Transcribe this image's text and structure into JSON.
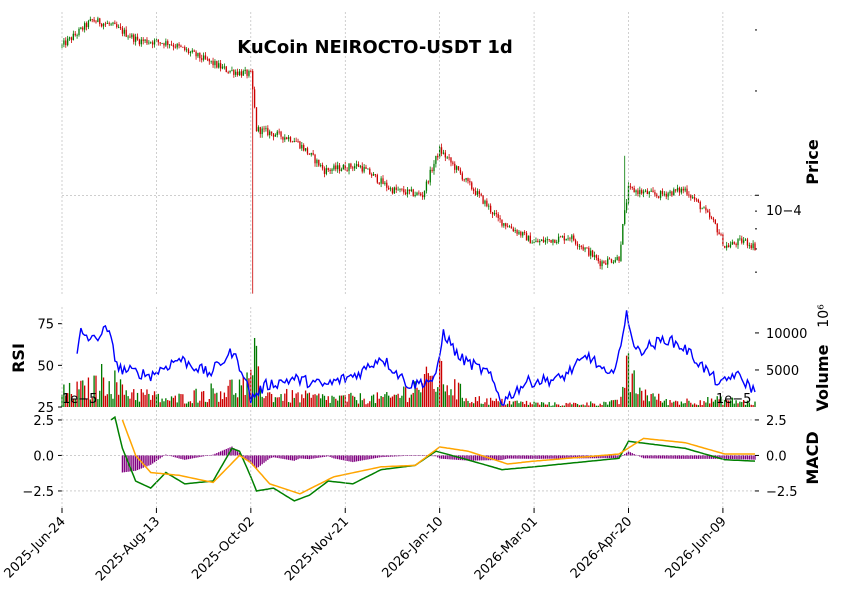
{
  "chart_data": {
    "type": "candlestick",
    "title": "KuCoin NEIROCTO-USDT 1d",
    "x_tick_labels": [
      "2025-Jun-24",
      "2025-Aug-13",
      "2025-Oct-02",
      "2025-Nov-21",
      "2026-Jan-10",
      "2026-Mar-01",
      "2026-Apr-20",
      "2026-Jun-09"
    ],
    "colors": {
      "up": "#007a00",
      "down": "#cc0000",
      "rsi": "#0000ff",
      "macd": "#008000",
      "signal": "#ffa500",
      "hist": "#800080",
      "grid": "#b0b0b0"
    },
    "price_panel": {
      "ylabel": "Price",
      "scale": "log",
      "tick_label": "10−4",
      "tick_value": 0.0001,
      "ylim": [
        5.12e-05,
        0.000338
      ],
      "close_keypoints": [
        {
          "date": "2025-06-24",
          "close": 0.00027
        },
        {
          "date": "2025-07-01",
          "close": 0.00029
        },
        {
          "date": "2025-07-10",
          "close": 0.00032
        },
        {
          "date": "2025-07-20",
          "close": 0.00031
        },
        {
          "date": "2025-08-03",
          "close": 0.00028
        },
        {
          "date": "2025-08-20",
          "close": 0.000275
        },
        {
          "date": "2025-09-05",
          "close": 0.00025
        },
        {
          "date": "2025-09-19",
          "close": 0.00023
        },
        {
          "date": "2025-10-02",
          "close": 0.000223
        },
        {
          "date": "2025-10-05",
          "close": 0.000155
        },
        {
          "date": "2025-10-25",
          "close": 0.000145
        },
        {
          "date": "2025-11-10",
          "close": 0.000118
        },
        {
          "date": "2025-11-28",
          "close": 0.000122
        },
        {
          "date": "2025-12-15",
          "close": 0.000104
        },
        {
          "date": "2026-01-01",
          "close": 0.0001
        },
        {
          "date": "2026-01-10",
          "close": 0.000135
        },
        {
          "date": "2026-01-25",
          "close": 0.000108
        },
        {
          "date": "2026-02-10",
          "close": 8.5e-05
        },
        {
          "date": "2026-03-01",
          "close": 7.3e-05
        },
        {
          "date": "2026-03-20",
          "close": 7.6e-05
        },
        {
          "date": "2026-04-05",
          "close": 6.4e-05
        },
        {
          "date": "2026-04-15",
          "close": 6.6e-05
        },
        {
          "date": "2026-04-20",
          "close": 0.000104
        },
        {
          "date": "2026-05-05",
          "close": 0.0001
        },
        {
          "date": "2026-05-20",
          "close": 0.000104
        },
        {
          "date": "2026-06-05",
          "close": 8.2e-05
        },
        {
          "date": "2026-06-10",
          "close": 7.1e-05
        },
        {
          "date": "2026-06-20",
          "close": 7.4e-05
        },
        {
          "date": "2026-06-26",
          "close": 7.1e-05
        }
      ],
      "spike_low": {
        "date": "2025-10-03",
        "low": 5.2e-05
      },
      "spike_high": {
        "date": "2026-04-18",
        "high": 0.00013
      }
    },
    "rsi_panel": {
      "ylabel": "RSI",
      "ylim": [
        25,
        85
      ],
      "yticks": [
        25,
        50,
        75
      ],
      "keypoints": [
        {
          "date": "2025-07-02",
          "rsi": 56
        },
        {
          "date": "2025-07-04",
          "rsi": 70
        },
        {
          "date": "2025-07-10",
          "rsi": 65
        },
        {
          "date": "2025-07-18",
          "rsi": 72
        },
        {
          "date": "2025-07-24",
          "rsi": 48
        },
        {
          "date": "2025-08-10",
          "rsi": 44
        },
        {
          "date": "2025-08-25",
          "rsi": 54
        },
        {
          "date": "2025-09-10",
          "rsi": 45
        },
        {
          "date": "2025-09-22",
          "rsi": 58
        },
        {
          "date": "2025-09-28",
          "rsi": 46
        },
        {
          "date": "2025-10-02",
          "rsi": 30
        },
        {
          "date": "2025-10-10",
          "rsi": 38
        },
        {
          "date": "2025-10-25",
          "rsi": 42
        },
        {
          "date": "2025-11-10",
          "rsi": 38
        },
        {
          "date": "2025-11-28",
          "rsi": 45
        },
        {
          "date": "2025-12-10",
          "rsi": 55
        },
        {
          "date": "2025-12-25",
          "rsi": 38
        },
        {
          "date": "2026-01-08",
          "rsi": 42
        },
        {
          "date": "2026-01-12",
          "rsi": 70
        },
        {
          "date": "2026-01-20",
          "rsi": 55
        },
        {
          "date": "2026-02-05",
          "rsi": 45
        },
        {
          "date": "2026-02-12",
          "rsi": 28
        },
        {
          "date": "2026-02-25",
          "rsi": 40
        },
        {
          "date": "2026-03-15",
          "rsi": 42
        },
        {
          "date": "2026-03-30",
          "rsi": 56
        },
        {
          "date": "2026-04-10",
          "rsi": 42
        },
        {
          "date": "2026-04-17",
          "rsi": 65
        },
        {
          "date": "2026-04-19",
          "rsi": 82
        },
        {
          "date": "2026-04-24",
          "rsi": 58
        },
        {
          "date": "2026-05-10",
          "rsi": 66
        },
        {
          "date": "2026-05-20",
          "rsi": 60
        },
        {
          "date": "2026-06-08",
          "rsi": 38
        },
        {
          "date": "2026-06-15",
          "rsi": 45
        },
        {
          "date": "2026-06-26",
          "rsi": 35
        }
      ]
    },
    "volume_panel": {
      "ylabel": "Volume",
      "scale_label": "10⁶",
      "yticks": [
        5000,
        10000
      ],
      "ymax": 13500,
      "keypoints": [
        {
          "date": "2025-06-24",
          "volume": 1800
        },
        {
          "date": "2025-07-10",
          "volume": 2500
        },
        {
          "date": "2025-07-18",
          "volume": 4200
        },
        {
          "date": "2025-07-25",
          "volume": 2300
        },
        {
          "date": "2025-08-20",
          "volume": 900
        },
        {
          "date": "2025-10-02",
          "volume": 3000
        },
        {
          "date": "2025-10-03",
          "volume": 6300
        },
        {
          "date": "2025-10-10",
          "volume": 1600
        },
        {
          "date": "2025-11-15",
          "volume": 1100
        },
        {
          "date": "2025-12-15",
          "volume": 1200
        },
        {
          "date": "2026-01-10",
          "volume": 4000
        },
        {
          "date": "2026-01-25",
          "volume": 1100
        },
        {
          "date": "2026-02-10",
          "volume": 700
        },
        {
          "date": "2026-03-15",
          "volume": 350
        },
        {
          "date": "2026-04-15",
          "volume": 600
        },
        {
          "date": "2026-04-19",
          "volume": 4800
        },
        {
          "date": "2026-04-25",
          "volume": 2200
        },
        {
          "date": "2026-05-10",
          "volume": 700
        },
        {
          "date": "2026-06-10",
          "volume": 900
        },
        {
          "date": "2026-06-26",
          "volume": 500
        }
      ]
    },
    "macd_panel": {
      "ylabel": "MACD",
      "offset_label": "1e−5",
      "left_yticks": [
        "2.5",
        "0.0",
        "−2.5"
      ],
      "right_yticks": [
        "2.5",
        "0.0",
        "−2.5"
      ],
      "macd_keypoints": [
        {
          "date": "2025-07-20",
          "v": 2.5
        },
        {
          "date": "2025-07-22",
          "v": 2.7
        },
        {
          "date": "2025-07-26",
          "v": 0.5
        },
        {
          "date": "2025-08-02",
          "v": -1.8
        },
        {
          "date": "2025-08-10",
          "v": -2.3
        },
        {
          "date": "2025-08-18",
          "v": -1.2
        },
        {
          "date": "2025-08-28",
          "v": -2.0
        },
        {
          "date": "2025-09-12",
          "v": -1.8
        },
        {
          "date": "2025-09-22",
          "v": 0.5
        },
        {
          "date": "2025-09-26",
          "v": 0.3
        },
        {
          "date": "2025-10-02",
          "v": -1.5
        },
        {
          "date": "2025-10-05",
          "v": -2.5
        },
        {
          "date": "2025-10-14",
          "v": -2.3
        },
        {
          "date": "2025-10-25",
          "v": -3.2
        },
        {
          "date": "2025-11-02",
          "v": -2.8
        },
        {
          "date": "2025-11-12",
          "v": -1.8
        },
        {
          "date": "2025-11-25",
          "v": -2.0
        },
        {
          "date": "2025-12-10",
          "v": -1.0
        },
        {
          "date": "2025-12-28",
          "v": -0.7
        },
        {
          "date": "2026-01-08",
          "v": 0.3
        },
        {
          "date": "2026-01-22",
          "v": -0.2
        },
        {
          "date": "2026-02-12",
          "v": -1.0
        },
        {
          "date": "2026-03-01",
          "v": -0.8
        },
        {
          "date": "2026-04-15",
          "v": -0.2
        },
        {
          "date": "2026-04-20",
          "v": 1.0
        },
        {
          "date": "2026-05-20",
          "v": 0.5
        },
        {
          "date": "2026-06-10",
          "v": -0.3
        },
        {
          "date": "2026-06-26",
          "v": -0.4
        }
      ],
      "signal_keypoints": [
        {
          "date": "2025-07-26",
          "v": 2.5
        },
        {
          "date": "2025-08-02",
          "v": 0.0
        },
        {
          "date": "2025-08-10",
          "v": -1.2
        },
        {
          "date": "2025-08-25",
          "v": -1.4
        },
        {
          "date": "2025-09-12",
          "v": -1.9
        },
        {
          "date": "2025-09-26",
          "v": 0.0
        },
        {
          "date": "2025-10-02",
          "v": -0.5
        },
        {
          "date": "2025-10-12",
          "v": -2.0
        },
        {
          "date": "2025-10-28",
          "v": -2.7
        },
        {
          "date": "2025-11-15",
          "v": -1.5
        },
        {
          "date": "2025-12-10",
          "v": -0.8
        },
        {
          "date": "2025-12-28",
          "v": -0.7
        },
        {
          "date": "2026-01-10",
          "v": 0.6
        },
        {
          "date": "2026-01-25",
          "v": 0.3
        },
        {
          "date": "2026-02-15",
          "v": -0.6
        },
        {
          "date": "2026-03-01",
          "v": -0.4
        },
        {
          "date": "2026-04-15",
          "v": 0.1
        },
        {
          "date": "2026-04-28",
          "v": 1.2
        },
        {
          "date": "2026-05-20",
          "v": 0.9
        },
        {
          "date": "2026-06-10",
          "v": 0.1
        },
        {
          "date": "2026-06-26",
          "v": 0.1
        }
      ]
    }
  }
}
